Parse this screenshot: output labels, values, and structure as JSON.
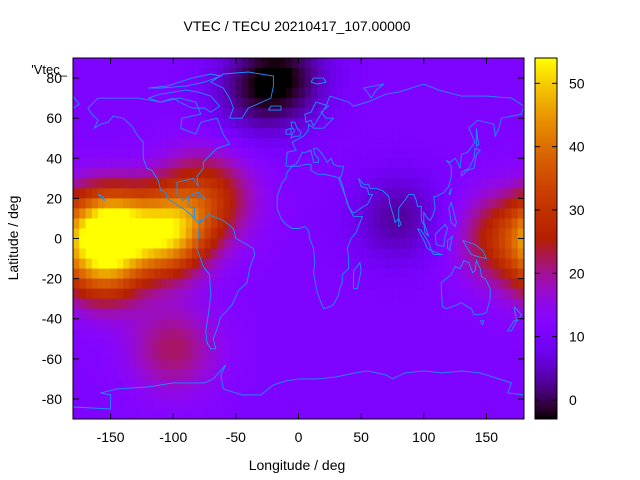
{
  "chart_data": {
    "type": "heatmap",
    "title": "VTEC / TECU 20210417_107.00000",
    "xlabel": "Longitude / deg",
    "ylabel": "Latitude / deg",
    "series_key": "'Vtec_",
    "xlim": [
      -180,
      180
    ],
    "ylim": [
      -90,
      90
    ],
    "zlim": [
      -3,
      54
    ],
    "x_ticks": [
      -150,
      -100,
      -50,
      0,
      50,
      100,
      150
    ],
    "y_ticks": [
      -80,
      -60,
      -40,
      -20,
      0,
      20,
      40,
      60,
      80
    ],
    "colorbar_ticks": [
      0,
      10,
      20,
      30,
      40,
      50
    ],
    "colormap": "gnuplot default (black-purple-red-orange-yellow)",
    "overlay": "coastline outlines",
    "coastline_color": "#1e90ff",
    "features": [
      {
        "lon": -150,
        "lat": 5,
        "vtec": 52
      },
      {
        "lon": -105,
        "lat": 2,
        "vtec": 45
      },
      {
        "lon": -75,
        "lat": 20,
        "vtec": 30
      },
      {
        "lon": -155,
        "lat": -15,
        "vtec": 32
      },
      {
        "lon": 165,
        "lat": 0,
        "vtec": 28
      },
      {
        "lon": -15,
        "lat": 80,
        "vtec": -2
      },
      {
        "lon": 80,
        "lat": 10,
        "vtec": 3
      },
      {
        "lon": -100,
        "lat": -55,
        "vtec": 22
      },
      {
        "lon": -40,
        "lat": 70,
        "vtec": 6
      }
    ]
  }
}
